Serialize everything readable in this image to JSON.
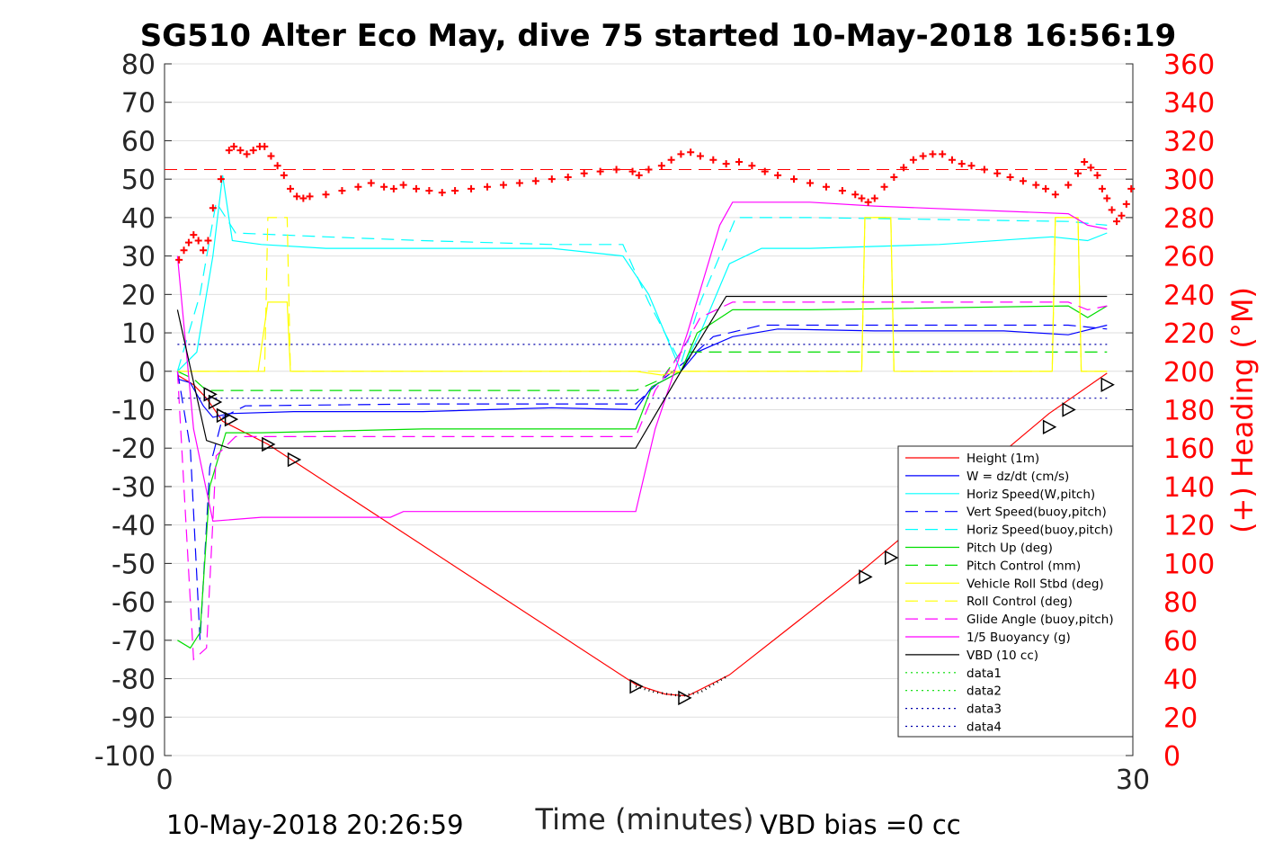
{
  "chart_data": {
    "type": "line",
    "title": "SG510 Alter Eco May, dive 75 started 10-May-2018 16:56:19",
    "xlabel": "Time (minutes)",
    "ylabel_right": "(+) Heading (°M)",
    "xlim": [
      0,
      30
    ],
    "ylim": [
      -100,
      80
    ],
    "ylim_right": [
      0,
      360
    ],
    "x_ticks": [
      "0",
      "30"
    ],
    "y_ticks": [
      "80",
      "70",
      "60",
      "50",
      "40",
      "30",
      "20",
      "10",
      "0",
      "-10",
      "-20",
      "-30",
      "-40",
      "-50",
      "-60",
      "-70",
      "-80",
      "-90",
      "-100"
    ],
    "y_right_ticks": [
      "360",
      "340",
      "320",
      "300",
      "280",
      "260",
      "240",
      "220",
      "200",
      "180",
      "160",
      "140",
      "120",
      "100",
      "80",
      "60",
      "40",
      "20",
      "0"
    ],
    "grid": true,
    "legend_position": "bottom-right",
    "footer_left": "10-May-2018 20:26:59",
    "footer_right": "VBD bias =0 cc",
    "series": [
      {
        "name": "Height (1m)",
        "color": "#ff0000",
        "style": "solid",
        "points": [
          [
            0.4,
            -1
          ],
          [
            0.9,
            -3.5
          ],
          [
            1.3,
            -7
          ],
          [
            1.8,
            -13
          ],
          [
            3.2,
            -19
          ],
          [
            14.6,
            -81.5
          ],
          [
            15.5,
            -84
          ],
          [
            16.2,
            -84.5
          ],
          [
            17.5,
            -79
          ],
          [
            21.6,
            -52
          ],
          [
            27.4,
            -11
          ],
          [
            29.2,
            -0.5
          ]
        ]
      },
      {
        "name": "W = dz/dt (cm/s)",
        "color": "#0000ff",
        "style": "solid",
        "points": [
          [
            0.4,
            -2
          ],
          [
            0.8,
            -3
          ],
          [
            1.2,
            -9
          ],
          [
            1.5,
            -12
          ],
          [
            2,
            -11
          ],
          [
            4,
            -10.5
          ],
          [
            8,
            -10.5
          ],
          [
            12,
            -9.5
          ],
          [
            14.6,
            -10
          ],
          [
            15.1,
            -4
          ],
          [
            16,
            0
          ],
          [
            16.5,
            5
          ],
          [
            17.6,
            9
          ],
          [
            19,
            11
          ],
          [
            22,
            10.5
          ],
          [
            26,
            10.5
          ],
          [
            28,
            9.5
          ],
          [
            29.2,
            12
          ]
        ]
      },
      {
        "name": "Horiz Speed(W,pitch)",
        "color": "#00ffff",
        "style": "solid",
        "points": [
          [
            0.4,
            0
          ],
          [
            1,
            5
          ],
          [
            1.5,
            30
          ],
          [
            1.8,
            51
          ],
          [
            2.1,
            34
          ],
          [
            3,
            33
          ],
          [
            5,
            32
          ],
          [
            8,
            32
          ],
          [
            12,
            32
          ],
          [
            14.2,
            30
          ],
          [
            15,
            20
          ],
          [
            16,
            0
          ],
          [
            16.6,
            10
          ],
          [
            17.5,
            28
          ],
          [
            18.5,
            32
          ],
          [
            20,
            32
          ],
          [
            24,
            33
          ],
          [
            27.5,
            35
          ],
          [
            28.6,
            34
          ],
          [
            29.2,
            36
          ]
        ]
      },
      {
        "name": "Vert Speed(buoy,pitch)",
        "color": "#0000ff",
        "style": "dashed",
        "points": [
          [
            0.4,
            0
          ],
          [
            0.8,
            -20
          ],
          [
            1.1,
            -70
          ],
          [
            1.4,
            -25
          ],
          [
            1.8,
            -12
          ],
          [
            2.5,
            -9
          ],
          [
            8,
            -8.5
          ],
          [
            14.6,
            -8.5
          ],
          [
            15.3,
            -3
          ],
          [
            16.2,
            3
          ],
          [
            17,
            9
          ],
          [
            18.5,
            12
          ],
          [
            22,
            12
          ],
          [
            28,
            12
          ],
          [
            29.2,
            11
          ]
        ]
      },
      {
        "name": "Horiz Speed(buoy,pitch)",
        "color": "#00ffff",
        "style": "dashed",
        "points": [
          [
            0.4,
            0
          ],
          [
            1.1,
            20
          ],
          [
            1.6,
            44
          ],
          [
            2.2,
            36
          ],
          [
            5,
            35
          ],
          [
            8,
            34
          ],
          [
            12,
            33
          ],
          [
            14.2,
            33
          ],
          [
            15,
            18
          ],
          [
            16,
            2
          ],
          [
            16.6,
            18
          ],
          [
            17.7,
            40
          ],
          [
            20,
            40
          ],
          [
            28,
            39
          ],
          [
            29.2,
            38
          ]
        ]
      },
      {
        "name": "Pitch Up (deg)",
        "color": "#00dd00",
        "style": "solid",
        "points": [
          [
            0.4,
            -70
          ],
          [
            0.8,
            -72
          ],
          [
            1.1,
            -68
          ],
          [
            1.4,
            -30
          ],
          [
            1.9,
            -16
          ],
          [
            3,
            -16
          ],
          [
            8,
            -15
          ],
          [
            14.6,
            -15
          ],
          [
            15.1,
            -4
          ],
          [
            16,
            0
          ],
          [
            16.5,
            10
          ],
          [
            17.6,
            16
          ],
          [
            20,
            16
          ],
          [
            28,
            17
          ],
          [
            28.6,
            14
          ],
          [
            29.2,
            17
          ]
        ]
      },
      {
        "name": "Pitch Control (mm)",
        "color": "#00dd00",
        "style": "dashed",
        "points": [
          [
            0.4,
            0
          ],
          [
            0.9,
            -2
          ],
          [
            1.3,
            -5
          ],
          [
            8,
            -5
          ],
          [
            14.6,
            -5
          ],
          [
            15.4,
            -2
          ],
          [
            16,
            5
          ],
          [
            29.2,
            5
          ]
        ]
      },
      {
        "name": "Vehicle Roll Stbd (deg)",
        "color": "#ffff00",
        "style": "solid",
        "points": [
          [
            0.4,
            0
          ],
          [
            1.9,
            0
          ],
          [
            2.9,
            0
          ],
          [
            3.2,
            18
          ],
          [
            3.8,
            18
          ],
          [
            3.9,
            0
          ],
          [
            14.6,
            0
          ],
          [
            15.4,
            -1
          ],
          [
            16,
            0
          ],
          [
            21.6,
            0
          ],
          [
            21.7,
            40
          ],
          [
            22.5,
            40
          ],
          [
            22.6,
            0
          ],
          [
            27.5,
            0
          ],
          [
            27.6,
            40
          ],
          [
            28.3,
            40
          ],
          [
            28.4,
            0
          ],
          [
            29.2,
            0
          ]
        ]
      },
      {
        "name": "Roll Control (deg)",
        "color": "#ffff00",
        "style": "dashed",
        "points": [
          [
            0.4,
            0
          ],
          [
            3.1,
            0
          ],
          [
            3.2,
            40
          ],
          [
            3.8,
            40
          ],
          [
            3.9,
            0
          ],
          [
            14.6,
            0
          ],
          [
            21.6,
            0
          ],
          [
            21.7,
            40
          ],
          [
            22.5,
            40
          ],
          [
            22.6,
            0
          ],
          [
            27.5,
            0
          ],
          [
            27.6,
            40
          ],
          [
            28.3,
            40
          ],
          [
            28.4,
            0
          ],
          [
            29.2,
            0
          ]
        ]
      },
      {
        "name": "Glide Angle (buoy,pitch)",
        "color": "#ff00ff",
        "style": "dashed",
        "points": [
          [
            0.4,
            0
          ],
          [
            0.9,
            -75
          ],
          [
            1.3,
            -72
          ],
          [
            1.6,
            -22
          ],
          [
            2.2,
            -17
          ],
          [
            8,
            -17
          ],
          [
            14.6,
            -17
          ],
          [
            15.2,
            -5
          ],
          [
            16,
            5
          ],
          [
            16.6,
            14
          ],
          [
            17.6,
            18
          ],
          [
            20,
            18
          ],
          [
            28,
            18
          ],
          [
            28.6,
            16
          ],
          [
            29.2,
            17
          ]
        ]
      },
      {
        "name": "1/5 Buoyancy (g)",
        "color": "#ff00ff",
        "style": "solid",
        "points": [
          [
            0.4,
            30
          ],
          [
            0.9,
            -15
          ],
          [
            1.5,
            -39
          ],
          [
            3,
            -38
          ],
          [
            7,
            -38
          ],
          [
            7.4,
            -36.5
          ],
          [
            14.6,
            -36.5
          ],
          [
            15.2,
            -15
          ],
          [
            16.2,
            10
          ],
          [
            17.2,
            38
          ],
          [
            17.6,
            44
          ],
          [
            20,
            44
          ],
          [
            22,
            43
          ],
          [
            28,
            41
          ],
          [
            28.6,
            38
          ],
          [
            29.2,
            37
          ]
        ]
      },
      {
        "name": "VBD (10 cc)",
        "color": "#000000",
        "style": "solid",
        "points": [
          [
            0.4,
            16
          ],
          [
            1.3,
            -18
          ],
          [
            2,
            -20
          ],
          [
            14.6,
            -20
          ],
          [
            16,
            0
          ],
          [
            17.4,
            19.5
          ],
          [
            29.2,
            19.5
          ]
        ]
      },
      {
        "name": "data1",
        "color": "#00dd00",
        "style": "dotted",
        "points": []
      },
      {
        "name": "data2",
        "color": "#00dd00",
        "style": "dotted",
        "points": []
      },
      {
        "name": "data3",
        "color": "#0000aa",
        "style": "dotted",
        "points": [
          [
            0.4,
            7
          ],
          [
            29.2,
            7
          ]
        ]
      },
      {
        "name": "data4",
        "color": "#0000aa",
        "style": "dotted",
        "points": [
          [
            0.4,
            -7
          ],
          [
            29.2,
            -7
          ]
        ]
      }
    ],
    "heading": {
      "name": "(+) Heading",
      "color": "#ff0000",
      "target": 305,
      "points": [
        [
          0.45,
          258
        ],
        [
          0.6,
          263
        ],
        [
          0.75,
          267
        ],
        [
          0.9,
          271
        ],
        [
          1.05,
          268
        ],
        [
          1.2,
          263
        ],
        [
          1.35,
          268
        ],
        [
          1.5,
          285
        ],
        [
          1.75,
          300
        ],
        [
          2.0,
          315
        ],
        [
          2.15,
          317
        ],
        [
          2.35,
          315
        ],
        [
          2.55,
          313
        ],
        [
          2.75,
          315
        ],
        [
          2.95,
          317
        ],
        [
          3.1,
          317
        ],
        [
          3.3,
          312
        ],
        [
          3.5,
          307
        ],
        [
          3.7,
          302
        ],
        [
          3.9,
          295
        ],
        [
          4.1,
          291
        ],
        [
          4.3,
          290
        ],
        [
          4.5,
          291
        ],
        [
          5,
          292
        ],
        [
          5.5,
          294
        ],
        [
          6,
          296
        ],
        [
          6.4,
          298
        ],
        [
          6.8,
          296
        ],
        [
          7.1,
          295
        ],
        [
          7.4,
          297
        ],
        [
          7.8,
          295
        ],
        [
          8.2,
          294
        ],
        [
          8.6,
          293
        ],
        [
          9,
          294
        ],
        [
          9.5,
          295
        ],
        [
          10,
          296
        ],
        [
          10.5,
          297
        ],
        [
          11,
          298
        ],
        [
          11.5,
          299
        ],
        [
          12,
          300
        ],
        [
          12.5,
          301
        ],
        [
          13,
          303
        ],
        [
          13.5,
          304
        ],
        [
          14,
          305
        ],
        [
          14.5,
          304
        ],
        [
          14.7,
          302
        ],
        [
          15,
          305
        ],
        [
          15.4,
          307
        ],
        [
          15.7,
          310
        ],
        [
          16,
          313
        ],
        [
          16.3,
          314
        ],
        [
          16.6,
          312
        ],
        [
          17,
          310
        ],
        [
          17.4,
          308
        ],
        [
          17.8,
          309
        ],
        [
          18.2,
          307
        ],
        [
          18.6,
          304
        ],
        [
          19,
          302
        ],
        [
          19.5,
          300
        ],
        [
          20,
          298
        ],
        [
          20.5,
          296
        ],
        [
          21,
          294
        ],
        [
          21.4,
          292
        ],
        [
          21.6,
          290
        ],
        [
          21.8,
          288
        ],
        [
          22,
          290
        ],
        [
          22.3,
          296
        ],
        [
          22.6,
          301
        ],
        [
          22.9,
          306
        ],
        [
          23.2,
          310
        ],
        [
          23.5,
          312
        ],
        [
          23.8,
          313
        ],
        [
          24.1,
          313
        ],
        [
          24.4,
          310
        ],
        [
          24.7,
          308
        ],
        [
          25,
          307
        ],
        [
          25.4,
          305
        ],
        [
          25.8,
          303
        ],
        [
          26.2,
          301
        ],
        [
          26.6,
          299
        ],
        [
          27,
          297
        ],
        [
          27.3,
          295
        ],
        [
          27.6,
          292
        ],
        [
          28,
          297
        ],
        [
          28.3,
          303
        ],
        [
          28.5,
          309
        ],
        [
          28.7,
          306
        ],
        [
          28.9,
          302
        ],
        [
          29.05,
          295
        ],
        [
          29.2,
          290
        ],
        [
          29.35,
          284
        ],
        [
          29.5,
          278
        ],
        [
          29.65,
          281
        ],
        [
          29.8,
          287
        ],
        [
          29.95,
          295
        ]
      ]
    },
    "markers": [
      [
        1.4,
        -6
      ],
      [
        1.55,
        -8
      ],
      [
        1.8,
        -11.5
      ],
      [
        2.05,
        -12.5
      ],
      [
        3.2,
        -19
      ],
      [
        4.0,
        -23
      ],
      [
        14.6,
        -82
      ],
      [
        16.1,
        -85
      ],
      [
        21.7,
        -53.5
      ],
      [
        22.5,
        -48.5
      ],
      [
        27.4,
        -14.5
      ],
      [
        28.0,
        -10
      ],
      [
        29.2,
        -3.5
      ]
    ]
  }
}
